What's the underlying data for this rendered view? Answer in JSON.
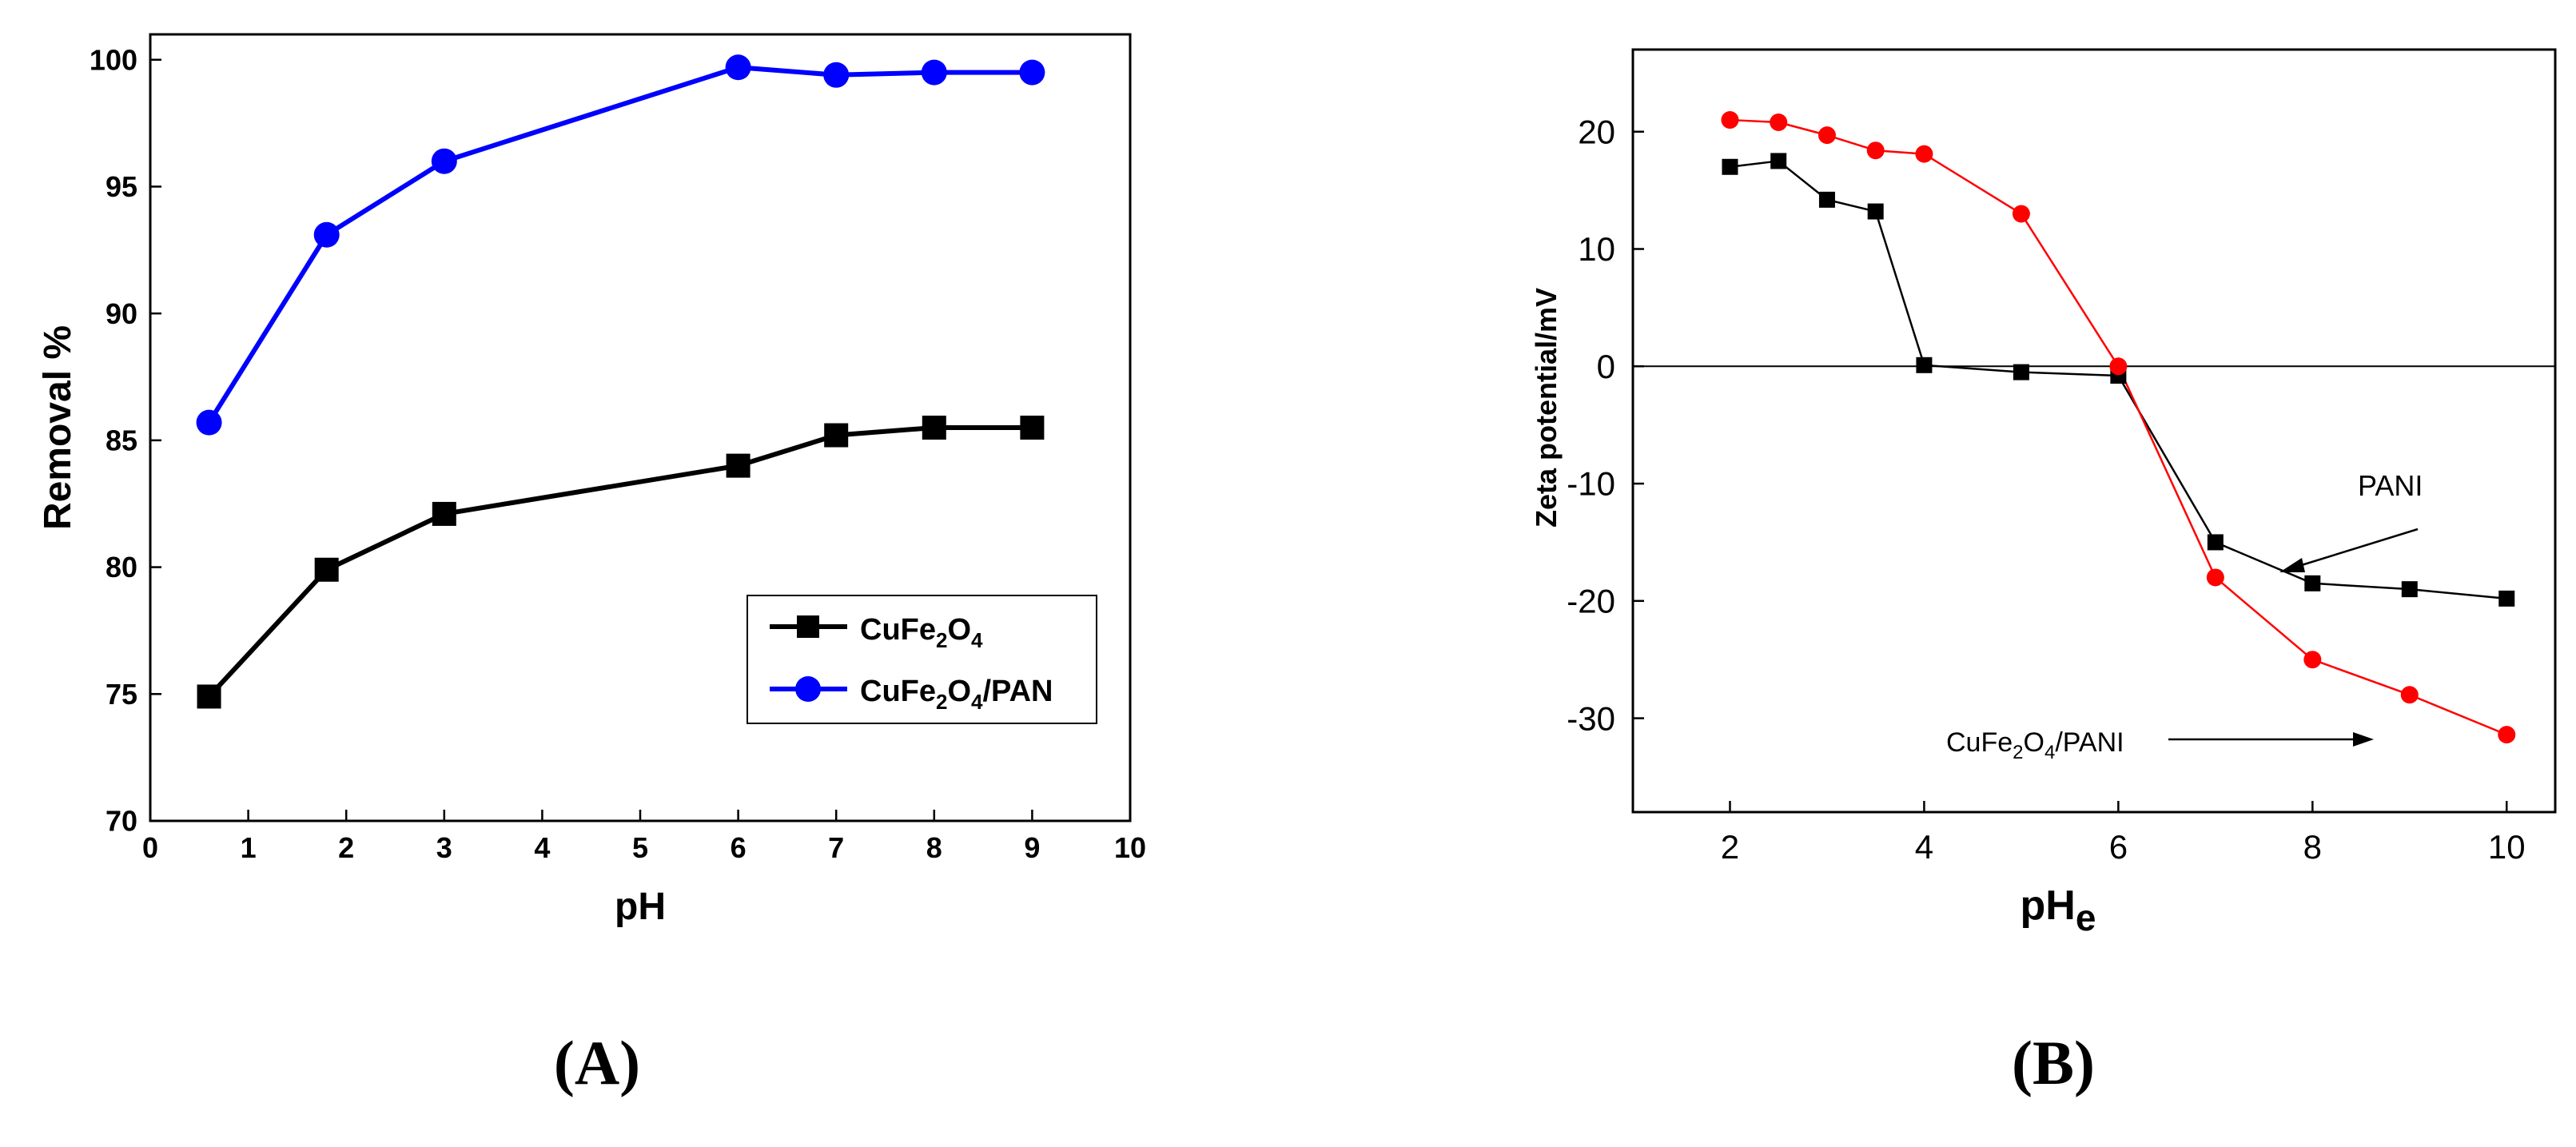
{
  "figure": {
    "panel_a_label": "(A)",
    "panel_b_label": "(B)"
  },
  "chart_data": [
    {
      "type": "line",
      "panel": "A",
      "title": "",
      "xlabel": "pH",
      "ylabel": "Removal %",
      "xlim": [
        0,
        10
      ],
      "ylim": [
        70,
        101
      ],
      "xticks": [
        0,
        1,
        2,
        3,
        4,
        5,
        6,
        7,
        8,
        9,
        10
      ],
      "yticks": [
        70,
        75,
        80,
        85,
        90,
        95,
        100
      ],
      "xtick_labels": [
        "0",
        "1",
        "2",
        "3",
        "4",
        "5",
        "6",
        "7",
        "8",
        "9",
        "10"
      ],
      "ytick_labels": [
        "70",
        "75",
        "80",
        "85",
        "90",
        "95",
        "100"
      ],
      "grid": false,
      "legend_position": "bottom-right",
      "series": [
        {
          "name": "CuFe2O4",
          "legend_base": "CuFe",
          "legend_sub1": "2",
          "legend_mid": "O",
          "legend_sub2": "4",
          "legend_tail": "",
          "color": "#000000",
          "marker": "square",
          "x": [
            0.6,
            1.8,
            3.0,
            6.0,
            7.0,
            8.0,
            9.0
          ],
          "y": [
            74.9,
            79.9,
            82.1,
            84.0,
            85.2,
            85.5,
            85.5
          ]
        },
        {
          "name": "CuFe2O4/PAN",
          "legend_base": "CuFe",
          "legend_sub1": "2",
          "legend_mid": "O",
          "legend_sub2": "4",
          "legend_tail": "/PAN",
          "color": "#0000ff",
          "marker": "circle",
          "x": [
            0.6,
            1.8,
            3.0,
            6.0,
            7.0,
            8.0,
            9.0
          ],
          "y": [
            85.7,
            93.1,
            96.0,
            99.7,
            99.4,
            99.5,
            99.5
          ]
        }
      ]
    },
    {
      "type": "line",
      "panel": "B",
      "title": "",
      "xlabel_main": "pH",
      "xlabel_sub": "e",
      "ylabel": "Zeta potential/mV",
      "xlim": [
        1,
        10.5
      ],
      "ylim": [
        -38,
        27
      ],
      "xticks": [
        2,
        4,
        6,
        8,
        10
      ],
      "yticks": [
        -30,
        -20,
        -10,
        0,
        10,
        20
      ],
      "xtick_labels": [
        "2",
        "4",
        "6",
        "8",
        "10"
      ],
      "ytick_labels": [
        "-30",
        "-20",
        "-10",
        "0",
        "10",
        "20"
      ],
      "zero_line": true,
      "grid": false,
      "series": [
        {
          "name": "PANI",
          "color": "#000000",
          "marker": "square",
          "x": [
            2,
            2.5,
            3,
            3.5,
            4,
            5,
            6,
            7,
            8,
            9,
            10
          ],
          "y": [
            17.0,
            17.5,
            14.2,
            13.2,
            0.1,
            -0.5,
            -0.8,
            -15.0,
            -18.5,
            -19.0,
            -19.8
          ]
        },
        {
          "name": "CuFe2O4/PANI",
          "color": "#ff0000",
          "marker": "circle",
          "x": [
            2,
            2.5,
            3,
            3.5,
            4,
            5,
            6,
            7,
            8,
            9,
            10
          ],
          "y": [
            21.0,
            20.8,
            19.7,
            18.4,
            18.1,
            13.0,
            0.0,
            -18.0,
            -25.0,
            -28.0,
            -31.4
          ]
        }
      ],
      "annotations": [
        {
          "text": "PANI"
        },
        {
          "text": "CuFe2O4/PANI",
          "base": "CuFe",
          "sub1": "2",
          "mid": "O",
          "sub2": "4",
          "tail": "/PANI"
        }
      ]
    }
  ]
}
